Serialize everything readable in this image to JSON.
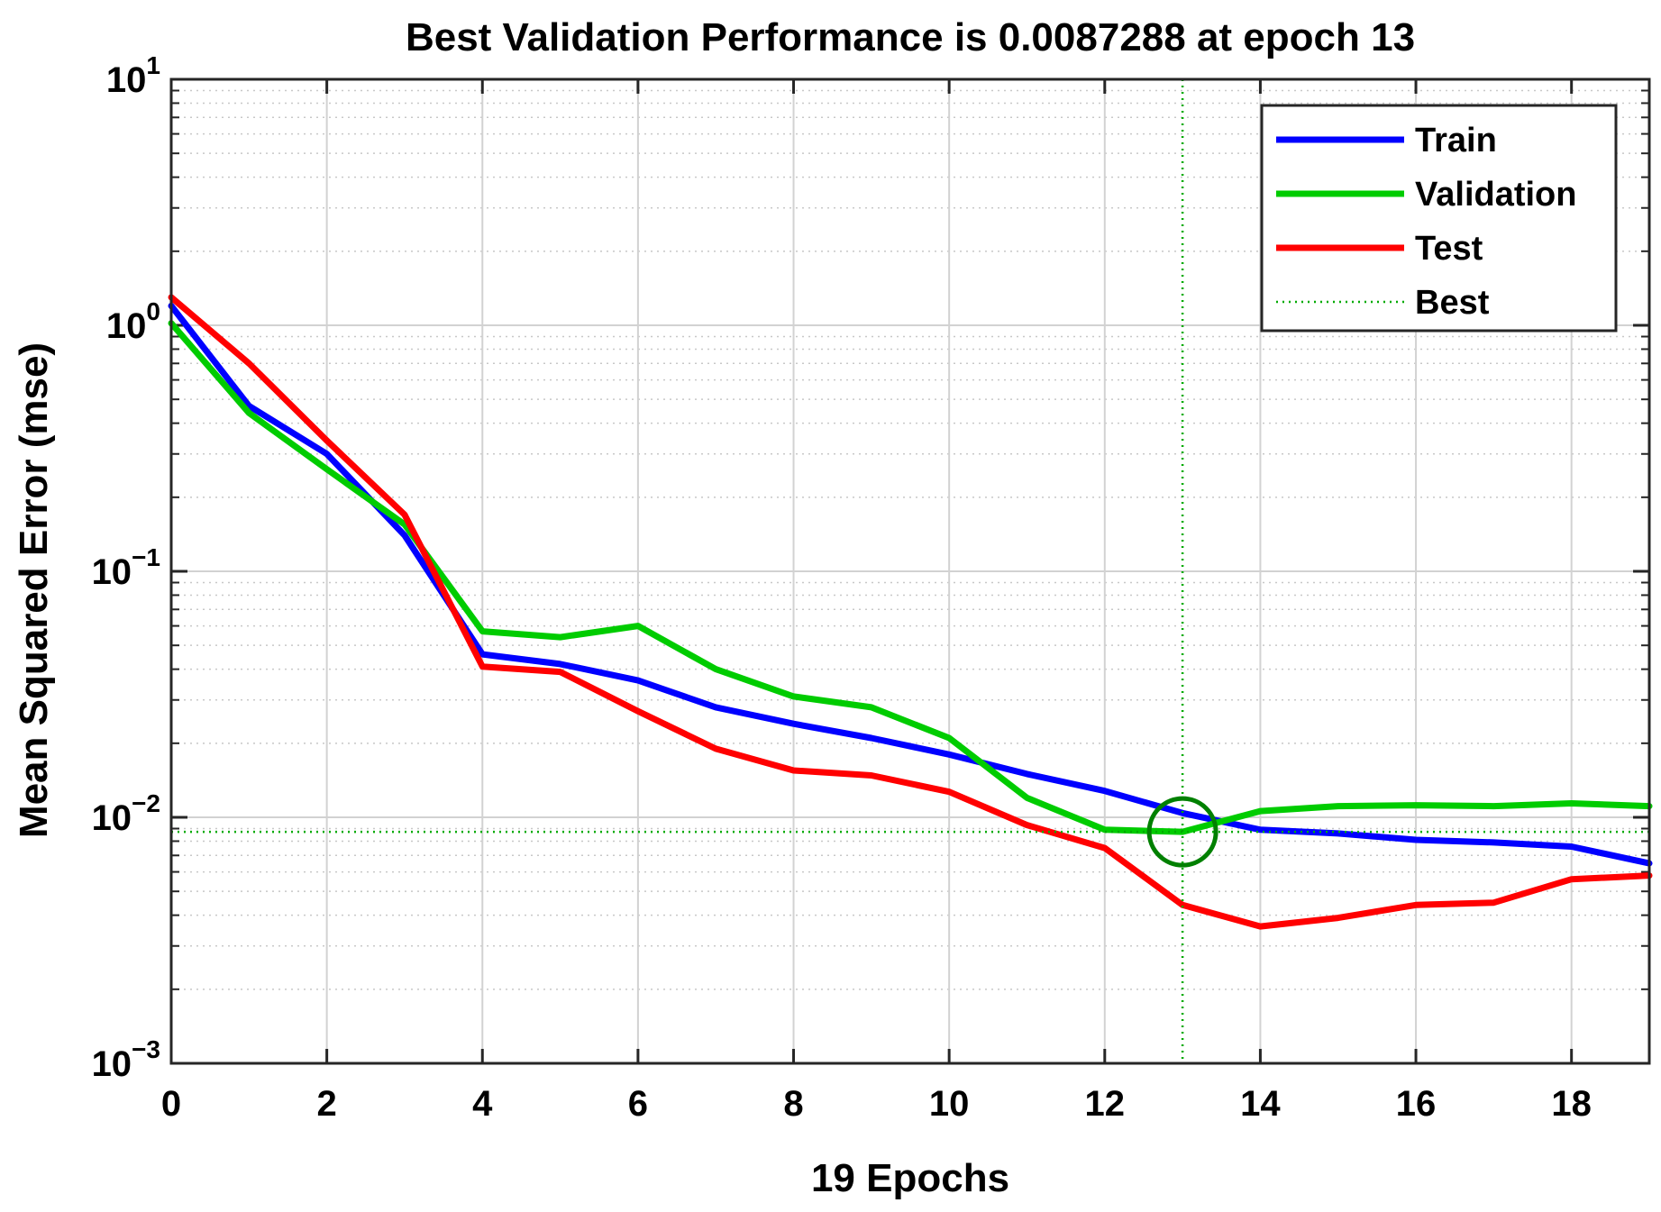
{
  "chart_data": {
    "type": "line",
    "title": "Best Validation Performance is 0.0087288 at epoch 13",
    "xlabel": "19 Epochs",
    "ylabel": "Mean Squared Error  (mse)",
    "xlim": [
      0,
      19
    ],
    "ylim": [
      0.001,
      10
    ],
    "yscale": "log",
    "grid": true,
    "legend_position": "top-right",
    "x_ticks": [
      0,
      2,
      4,
      6,
      8,
      10,
      12,
      14,
      16,
      18
    ],
    "y_ticks": [
      {
        "base": "10",
        "exp": "1",
        "value": 10
      },
      {
        "base": "10",
        "exp": "0",
        "value": 1
      },
      {
        "base": "10",
        "exp": "−1",
        "value": 0.1
      },
      {
        "base": "10",
        "exp": "−2",
        "value": 0.01
      },
      {
        "base": "10",
        "exp": "−3",
        "value": 0.001
      }
    ],
    "x": [
      0,
      1,
      2,
      3,
      4,
      5,
      6,
      7,
      8,
      9,
      10,
      11,
      12,
      13,
      14,
      15,
      16,
      17,
      18,
      19
    ],
    "series": [
      {
        "name": "Train",
        "color": "#0000ff",
        "values": [
          1.2,
          0.47,
          0.3,
          0.14,
          0.046,
          0.042,
          0.036,
          0.028,
          0.024,
          0.021,
          0.018,
          0.015,
          0.0128,
          0.0104,
          0.0089,
          0.0086,
          0.0081,
          0.0079,
          0.0076,
          0.0065
        ]
      },
      {
        "name": "Validation",
        "color": "#00cc00",
        "values": [
          1.02,
          0.44,
          0.26,
          0.155,
          0.057,
          0.054,
          0.06,
          0.04,
          0.031,
          0.028,
          0.021,
          0.012,
          0.0089,
          0.0087288,
          0.0106,
          0.0111,
          0.0112,
          0.0111,
          0.0114,
          0.0111
        ]
      },
      {
        "name": "Test",
        "color": "#ff0000",
        "values": [
          1.3,
          0.7,
          0.34,
          0.17,
          0.041,
          0.039,
          0.027,
          0.019,
          0.0155,
          0.0148,
          0.0127,
          0.0093,
          0.0075,
          0.0044,
          0.0036,
          0.0039,
          0.0044,
          0.0045,
          0.0056,
          0.0058
        ]
      }
    ],
    "best": {
      "name": "Best",
      "epoch": 13,
      "value": 0.0087288,
      "color": "#00aa00"
    }
  }
}
